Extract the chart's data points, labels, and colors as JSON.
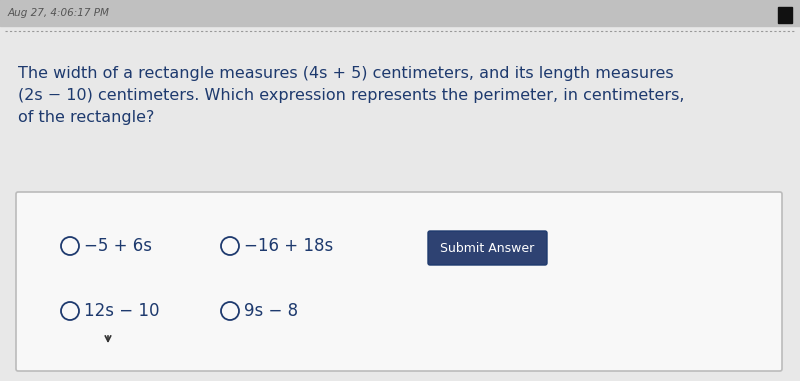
{
  "page_bg": "#b8b8b8",
  "question_area_bg": "#f0f0f0",
  "header_text": "Aug 27, 4:06:17 PM",
  "header_text_color": "#555555",
  "header_square_color": "#111111",
  "dotted_line_color": "#999999",
  "question_line1": "The width of a rectangle measures (4s + 5) centimeters, and its length measures",
  "question_line2": "(2s − 10) centimeters. Which expression represents the perimeter, in centimeters,",
  "question_line3": "of the rectangle?",
  "question_color": "#1e3a6e",
  "answer_box_bg": "#f8f8f8",
  "answer_box_border": "#bbbbbb",
  "choice_color": "#1e3a6e",
  "circle_color": "#1e3a6e",
  "submit_btn_bg": "#2e4272",
  "submit_btn_text": "Submit Answer",
  "submit_btn_text_color": "#ffffff",
  "font_size_header": 7.5,
  "font_size_question": 11.5,
  "font_size_choice": 12,
  "font_size_submit": 9
}
